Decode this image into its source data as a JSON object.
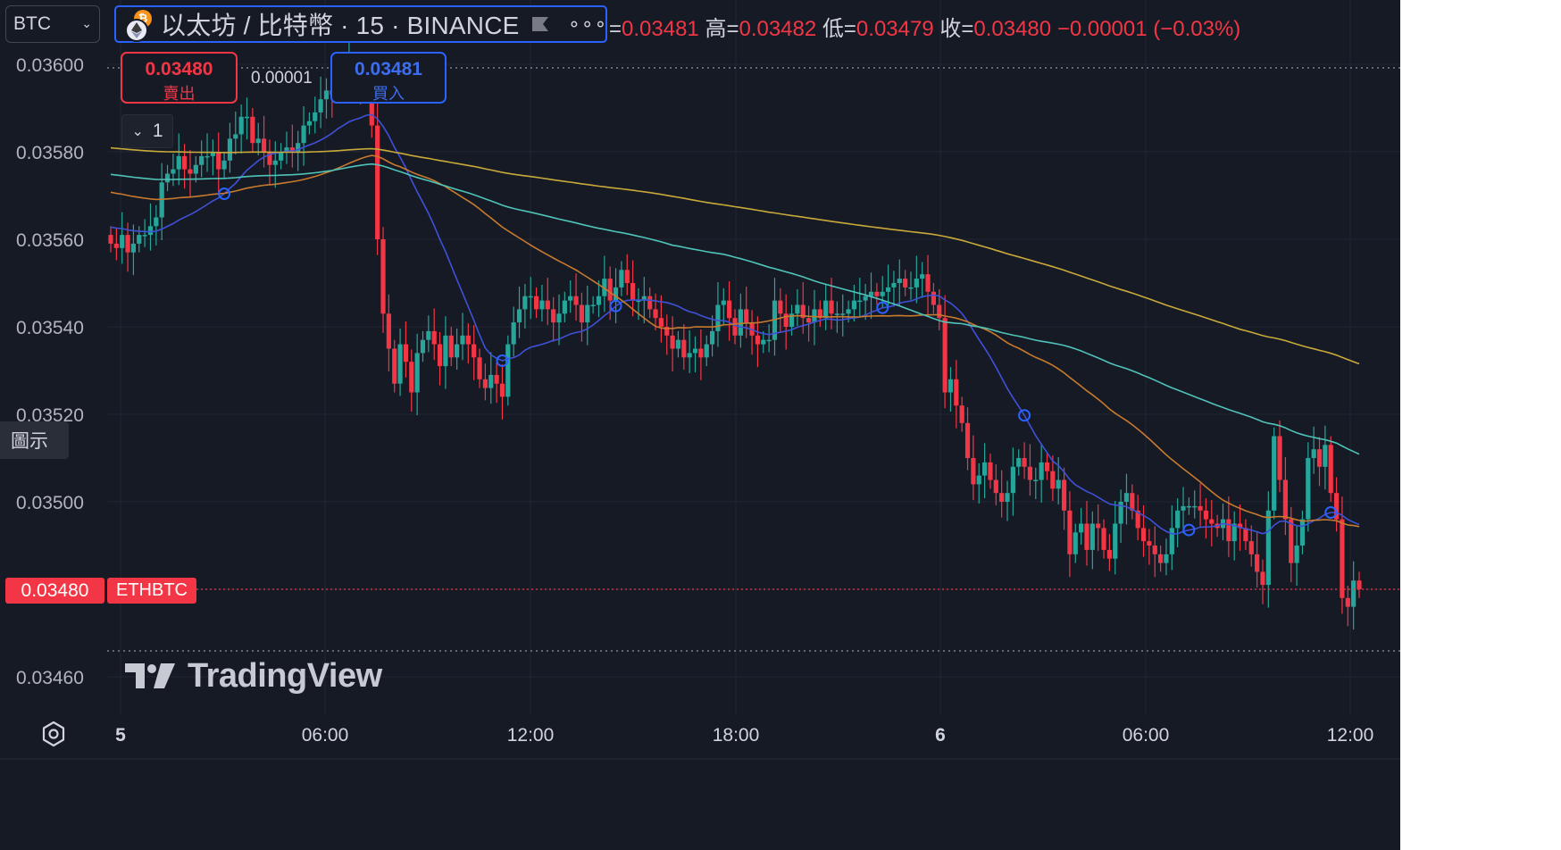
{
  "symbol_select": {
    "value": "BTC"
  },
  "header": {
    "title": "以太坊 / 比特幣 · 15 · BINANCE",
    "more_label": "∘∘∘",
    "ohlc": {
      "open_label": "=",
      "open": "0.03481",
      "high_label": "高=",
      "high": "0.03482",
      "low_label": "低=",
      "low": "0.03479",
      "close_label": "收=",
      "close": "0.03480",
      "change": "−0.00001 (−0.03%)"
    }
  },
  "trade": {
    "sell_price": "0.03480",
    "sell_label": "賣出",
    "buy_price": "0.03481",
    "buy_label": "買入",
    "spread": "0.00001"
  },
  "interval_button": {
    "label": "1"
  },
  "legend_button": {
    "label": "圖示"
  },
  "last_price_tag": {
    "price": "0.03480",
    "symbol": "ETHBTC"
  },
  "watermark": {
    "text": "TradingView"
  },
  "colors": {
    "background": "#161a25",
    "up": "#26a69a",
    "down": "#f23645",
    "ma_blue": "#3f51d8",
    "ma_orange": "#c77a2e",
    "ma_teal": "#4fc3b8",
    "ma_yellow": "#c9a93a",
    "accent": "#2962ff"
  },
  "chart_data": {
    "type": "candlestick",
    "ylim": [
      0.03455,
      0.03607
    ],
    "y_ticks": [
      "0.03600",
      "0.03580",
      "0.03560",
      "0.03540",
      "0.03520",
      "0.03500",
      "0.03480",
      "0.03460"
    ],
    "x_ticks": [
      {
        "label": "5",
        "bold": true
      },
      {
        "label": "06:00",
        "bold": false
      },
      {
        "label": "12:00",
        "bold": false
      },
      {
        "label": "18:00",
        "bold": false
      },
      {
        "label": "6",
        "bold": true
      },
      {
        "label": "06:00",
        "bold": false
      },
      {
        "label": "12:00",
        "bold": false
      }
    ],
    "last_price": 0.0348,
    "close_series": [
      0.03559,
      0.03558,
      0.03561,
      0.03557,
      0.03559,
      0.03561,
      0.03561,
      0.03563,
      0.03565,
      0.03573,
      0.03575,
      0.03576,
      0.03579,
      0.03576,
      0.03575,
      0.03577,
      0.03579,
      0.03579,
      0.0358,
      0.03576,
      0.03578,
      0.03583,
      0.03584,
      0.03588,
      0.03588,
      0.03582,
      0.03583,
      0.0358,
      0.03577,
      0.03578,
      0.0358,
      0.03581,
      0.0358,
      0.03582,
      0.03586,
      0.03587,
      0.03589,
      0.03592,
      0.03594,
      0.03593,
      0.03598,
      0.03599,
      0.036,
      0.03598,
      0.03596,
      0.03594,
      0.03586,
      0.0356,
      0.03543,
      0.03535,
      0.03527,
      0.03536,
      0.03532,
      0.03525,
      0.03534,
      0.03537,
      0.03539,
      0.03536,
      0.03531,
      0.03538,
      0.03533,
      0.03536,
      0.03538,
      0.03536,
      0.03533,
      0.03528,
      0.03526,
      0.03529,
      0.03527,
      0.03524,
      0.03536,
      0.03541,
      0.03544,
      0.03547,
      0.03547,
      0.03544,
      0.03546,
      0.03544,
      0.03541,
      0.03543,
      0.03546,
      0.03547,
      0.03545,
      0.03541,
      0.03545,
      0.03545,
      0.03547,
      0.03551,
      0.03546,
      0.03549,
      0.03553,
      0.0355,
      0.03546,
      0.03546,
      0.03547,
      0.03544,
      0.03542,
      0.0354,
      0.03538,
      0.03535,
      0.03537,
      0.03533,
      0.03534,
      0.03535,
      0.03533,
      0.03536,
      0.03539,
      0.03545,
      0.03546,
      0.03542,
      0.03538,
      0.03544,
      0.03541,
      0.03538,
      0.03536,
      0.03537,
      0.03537,
      0.03546,
      0.03543,
      0.0354,
      0.03543,
      0.03545,
      0.03542,
      0.03541,
      0.03544,
      0.03542,
      0.03546,
      0.03543,
      0.03543,
      0.03543,
      0.03544,
      0.03546,
      0.03546,
      0.03547,
      0.03548,
      0.03547,
      0.03548,
      0.03549,
      0.0355,
      0.03551,
      0.03549,
      0.03549,
      0.03551,
      0.03552,
      0.03548,
      0.03545,
      0.03542,
      0.03525,
      0.03528,
      0.03522,
      0.03518,
      0.0351,
      0.03504,
      0.03506,
      0.03509,
      0.03505,
      0.03502,
      0.035,
      0.03502,
      0.03508,
      0.0351,
      0.03508,
      0.03505,
      0.03505,
      0.03509,
      0.03507,
      0.03503,
      0.03505,
      0.03498,
      0.03488,
      0.03493,
      0.03495,
      0.03489,
      0.03495,
      0.03494,
      0.03489,
      0.03487,
      0.03495,
      0.035,
      0.03502,
      0.03498,
      0.03494,
      0.03491,
      0.0349,
      0.03488,
      0.03486,
      0.03488,
      0.03494,
      0.03498,
      0.03499,
      0.03499,
      0.03499,
      0.03498,
      0.03496,
      0.03495,
      0.03494,
      0.03496,
      0.03491,
      0.03495,
      0.03494,
      0.03491,
      0.03488,
      0.03484,
      0.03481,
      0.03498,
      0.03515,
      0.03505,
      0.03496,
      0.03486,
      0.0349,
      0.03496,
      0.0351,
      0.03512,
      0.03508,
      0.03513,
      0.03502,
      0.03496,
      0.03478,
      0.03476,
      0.03482,
      0.0348
    ]
  }
}
